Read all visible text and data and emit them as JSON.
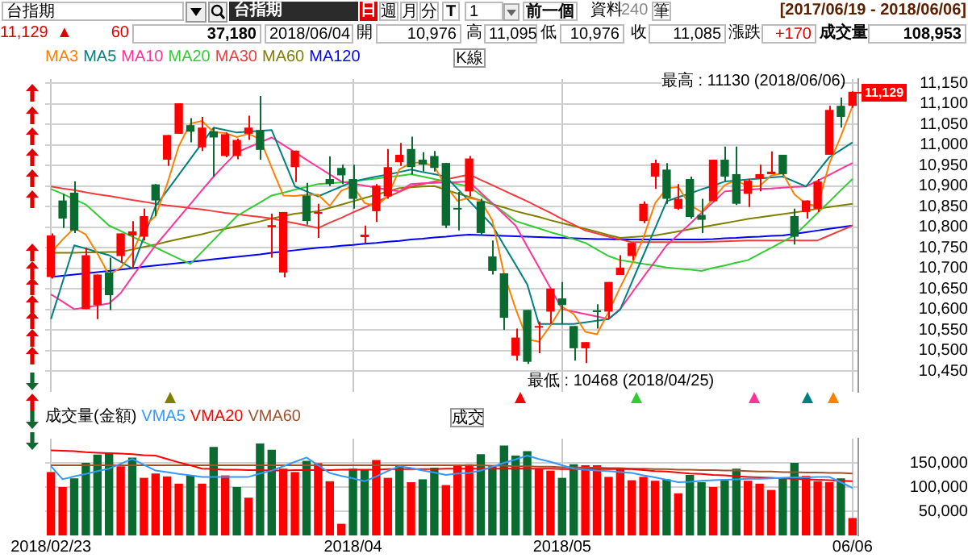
{
  "chart_data": [
    {
      "type": "candlestick",
      "legend": "top left",
      "grid": true,
      "tick_labels": "y",
      "marker": "none",
      "line_style": "solid",
      "categories": [
        null,
        null,
        null,
        null,
        null,
        null,
        null,
        null,
        null,
        null,
        null,
        null,
        null,
        null,
        null,
        null,
        null,
        null,
        null,
        null,
        null,
        null,
        null,
        null,
        null,
        null,
        null,
        null,
        null,
        null,
        null,
        null,
        null,
        null,
        null,
        null,
        null,
        null,
        null,
        null,
        null,
        null,
        null,
        null,
        null,
        null,
        null,
        null,
        null,
        null,
        null,
        null,
        null,
        null,
        null,
        null,
        null,
        null,
        null,
        null,
        null,
        null,
        null,
        null,
        null,
        null,
        null,
        null,
        null,
        null
      ],
      "ohlc": [
        [
          10679,
          10785,
          10675,
          10780
        ],
        [
          10865,
          10881,
          10798,
          10821
        ],
        [
          10884,
          10911,
          10786,
          10792
        ],
        [
          10601,
          10750,
          10601,
          10732
        ],
        [
          10611,
          10685,
          10577,
          10685
        ],
        [
          10690,
          10726,
          10599,
          10635
        ],
        [
          10730,
          10785,
          10714,
          10785
        ],
        [
          10780,
          10815,
          10700,
          10790
        ],
        [
          10777,
          10845,
          10768,
          10827
        ],
        [
          10904,
          10905,
          10827,
          10865
        ],
        [
          10964,
          11024,
          10949,
          11024
        ],
        [
          11027,
          11101,
          11027,
          11101
        ],
        [
          11048,
          11065,
          11006,
          11032
        ],
        [
          10994,
          11068,
          10985,
          11042
        ],
        [
          11033,
          11042,
          10923,
          11018
        ],
        [
          10973,
          11030,
          10970,
          11026
        ],
        [
          10973,
          11015,
          10965,
          11012
        ],
        [
          11027,
          11071,
          11012,
          11042
        ],
        [
          11036,
          11119,
          10964,
          10988
        ],
        [
          10800,
          10833,
          10726,
          10805
        ],
        [
          10690,
          10837,
          10678,
          10837
        ],
        [
          10946,
          10986,
          10910,
          10986
        ],
        [
          10877,
          10908,
          10806,
          10815
        ],
        [
          10833,
          10857,
          10774,
          10837
        ],
        [
          10917,
          10972,
          10900,
          10905
        ],
        [
          10944,
          10952,
          10905,
          10926
        ],
        [
          10917,
          10952,
          10845,
          10869
        ],
        [
          10776,
          10804,
          10762,
          10782
        ],
        [
          10839,
          10905,
          10813,
          10901
        ],
        [
          10875,
          10990,
          10869,
          10946
        ],
        [
          10958,
          11005,
          10949,
          10976
        ],
        [
          10990,
          11020,
          10928,
          10946
        ],
        [
          10964,
          10982,
          10935,
          10952
        ],
        [
          10973,
          10985,
          10935,
          10944
        ],
        [
          10956,
          10956,
          10798,
          10804
        ],
        [
          10845,
          10886,
          10792,
          10843
        ],
        [
          10887,
          10973,
          10875,
          10967
        ],
        [
          10863,
          10869,
          10780,
          10786
        ],
        [
          10729,
          10768,
          10685,
          10694
        ],
        [
          10688,
          10688,
          10551,
          10580
        ],
        [
          10488,
          10554,
          10476,
          10532
        ],
        [
          10599,
          10599,
          10468,
          10473
        ],
        [
          10556,
          10571,
          10494,
          10560
        ],
        [
          10595,
          10651,
          10565,
          10651
        ],
        [
          10627,
          10667,
          10565,
          10611
        ],
        [
          10560,
          10560,
          10476,
          10506
        ],
        [
          10506,
          10521,
          10470,
          10521
        ],
        [
          10596,
          10613,
          10554,
          10594
        ],
        [
          10595,
          10667,
          10577,
          10667
        ],
        [
          10684,
          10732,
          10684,
          10702
        ],
        [
          10730,
          10762,
          10720,
          10762
        ],
        [
          10815,
          10863,
          10810,
          10857
        ],
        [
          10923,
          10964,
          10893,
          10956
        ],
        [
          10940,
          10956,
          10857,
          10869
        ],
        [
          10845,
          10905,
          10842,
          10869
        ],
        [
          10917,
          10923,
          10821,
          10825
        ],
        [
          10830,
          10869,
          10786,
          10818
        ],
        [
          10863,
          10964,
          10863,
          10964
        ],
        [
          10964,
          10996,
          10911,
          10923
        ],
        [
          10929,
          10996,
          10854,
          10857
        ],
        [
          10881,
          10917,
          10849,
          10913
        ],
        [
          10919,
          10952,
          10887,
          10929
        ],
        [
          10929,
          10984,
          10929,
          10935
        ],
        [
          10976,
          10976,
          10926,
          10929
        ],
        [
          10827,
          10845,
          10758,
          10777
        ],
        [
          10837,
          10865,
          10821,
          10865
        ],
        [
          10845,
          10917,
          10837,
          10911
        ],
        [
          10976,
          11095,
          10976,
          11085
        ],
        [
          11095,
          11115,
          11042,
          11068
        ],
        [
          11095,
          11130,
          11090,
          11129
        ]
      ],
      "colors": [
        "#ff0000",
        "#0a6b30",
        "#0a6b30",
        "#ff0000",
        "#ff0000",
        "#0a6b30",
        "#ff0000",
        "#ff0000",
        "#ff0000",
        "#0a6b30",
        "#ff0000",
        "#ff0000",
        "#0a6b30",
        "#ff0000",
        "#0a6b30",
        "#ff0000",
        "#ff0000",
        "#ff0000",
        "#0a6b30",
        "#ff0000",
        "#ff0000",
        "#ff0000",
        "#0a6b30",
        "#ff0000",
        "#0a6b30",
        "#0a6b30",
        "#0a6b30",
        "#ff0000",
        "#ff0000",
        "#ff0000",
        "#ff0000",
        "#0a6b30",
        "#0a6b30",
        "#0a6b30",
        "#0a6b30",
        "#0a6b30",
        "#ff0000",
        "#0a6b30",
        "#0a6b30",
        "#0a6b30",
        "#ff0000",
        "#0a6b30",
        "#ff0000",
        "#ff0000",
        "#0a6b30",
        "#0a6b30",
        "#ff0000",
        "#0a6b30",
        "#ff0000",
        "#ff0000",
        "#ff0000",
        "#ff0000",
        "#ff0000",
        "#0a6b30",
        "#ff0000",
        "#0a6b30",
        "#0a6b30",
        "#ff0000",
        "#0a6b30",
        "#0a6b30",
        "#ff0000",
        "#ff0000",
        "#ff0000",
        "#0a6b30",
        "#0a6b30",
        "#ff0000",
        "#ff0000",
        "#ff0000",
        "#0a6b30",
        "#ff0000"
      ],
      "series": [
        {
          "name": "MA3",
          "type": "line",
          "color": "#ff8000",
          "values": [
            10738,
            10770,
            10798,
            10782,
            10736,
            10684,
            10702,
            10737,
            10801,
            10827,
            10905,
            10997,
            11052,
            11058,
            11031,
            11029,
            11019,
            11027,
            11014,
            10945,
            10877,
            10876,
            10879,
            10879,
            10852,
            10889,
            10900,
            10859,
            10851,
            10876,
            10941,
            10956,
            10958,
            10947,
            10900,
            10864,
            10871,
            10865,
            10816,
            10687,
            10602,
            10528,
            10522,
            10561,
            10607,
            10589,
            10546,
            10540,
            10594,
            10654,
            10710,
            10774,
            10858,
            10894,
            10898,
            10854,
            10837,
            10869,
            10902,
            10915,
            10898,
            10900,
            10926,
            10931,
            10880,
            10857,
            10851,
            10954,
            11021,
            11094
          ]
        },
        {
          "name": "MA5",
          "type": "line",
          "color": "#008080",
          "values": [
            10577,
            10667,
            10756,
            10748,
            10740,
            10732,
            10716,
            10700,
            10776,
            10851,
            10889,
            10927,
            10966,
            11004,
            11042,
            11036,
            11030,
            11032,
            11034,
            11036,
            10968,
            10899,
            10887,
            10875,
            10887,
            10899,
            10911,
            10917,
            10923,
            10928,
            10934,
            10940,
            10934,
            10929,
            10923,
            10893,
            10864,
            10834,
            10804,
            10756,
            10709,
            10661,
            10565,
            10565,
            10565,
            10565,
            10569,
            10573,
            10577,
            10600,
            10666,
            10732,
            10797,
            10863,
            10873,
            10882,
            10892,
            10901,
            10911,
            10913,
            10916,
            10918,
            10921,
            10923,
            10911,
            10899,
            10935,
            10970,
            10988,
            11006
          ]
        },
        {
          "name": "MA10",
          "type": "line",
          "color": "#ff3399",
          "values": [
            10637,
            10619,
            10601,
            10605,
            10610,
            10615,
            10640,
            10680,
            10718,
            10756,
            10789,
            10823,
            10856,
            10890,
            10923,
            10953,
            10982,
            10994,
            11006,
            11018,
            11000,
            10982,
            10964,
            10946,
            10928,
            10911,
            10906,
            10901,
            10896,
            10891,
            10887,
            10905,
            10907,
            10908,
            10909,
            10910,
            10911,
            10884,
            10858,
            10831,
            10804,
            10753,
            10703,
            10652,
            10601,
            10595,
            10589,
            10583,
            10577,
            10601,
            10640,
            10679,
            10717,
            10756,
            10782,
            10808,
            10835,
            10861,
            10887,
            10889,
            10891,
            10893,
            10894,
            10896,
            10898,
            10899,
            10913,
            10927,
            10942,
            10956
          ]
        },
        {
          "name": "MA20",
          "type": "line",
          "color": "#33cc33",
          "values": [
            10893,
            10881,
            10868,
            10855,
            10830,
            10804,
            10791,
            10777,
            10764,
            10751,
            10737,
            10724,
            10711,
            10740,
            10769,
            10798,
            10827,
            10844,
            10860,
            10877,
            10884,
            10891,
            10898,
            10905,
            10907,
            10909,
            10911,
            10915,
            10918,
            10922,
            10925,
            10929,
            10923,
            10917,
            10911,
            10905,
            10899,
            10878,
            10857,
            10836,
            10815,
            10806,
            10797,
            10788,
            10780,
            10771,
            10762,
            10746,
            10730,
            10720,
            10716,
            10711,
            10707,
            10702,
            10699,
            10697,
            10694,
            10701,
            10707,
            10714,
            10720,
            10735,
            10750,
            10765,
            10780,
            10807,
            10835,
            10862,
            10890,
            10917
          ]
        },
        {
          "name": "MA30",
          "type": "line",
          "color": "#f03c3c",
          "values": [
            10899,
            10894,
            10890,
            10885,
            10880,
            10876,
            10871,
            10866,
            10862,
            10857,
            10853,
            10850,
            10846,
            10843,
            10839,
            10835,
            10832,
            10828,
            10825,
            10821,
            10815,
            10810,
            10804,
            10798,
            10811,
            10823,
            10836,
            10848,
            10861,
            10874,
            10886,
            10899,
            10905,
            10911,
            10916,
            10922,
            10928,
            10915,
            10902,
            10889,
            10876,
            10863,
            10849,
            10835,
            10820,
            10806,
            10792,
            10785,
            10777,
            10770,
            10764,
            10764,
            10764,
            10764,
            10764,
            10764,
            10764,
            10765,
            10766,
            10767,
            10768,
            10768,
            10768,
            10768,
            10768,
            10768,
            10768,
            10780,
            10792,
            10804
          ]
        },
        {
          "name": "MA60",
          "type": "line",
          "color": "#808000",
          "values": [
            10738,
            10738,
            10738,
            10739,
            10739,
            10740,
            10740,
            10746,
            10752,
            10758,
            10765,
            10771,
            10777,
            10783,
            10790,
            10796,
            10802,
            10808,
            10814,
            10821,
            10827,
            10833,
            10836,
            10839,
            10847,
            10855,
            10863,
            10871,
            10879,
            10887,
            10895,
            10897,
            10899,
            10900,
            10891,
            10882,
            10874,
            10865,
            10856,
            10848,
            10839,
            10832,
            10825,
            10817,
            10810,
            10803,
            10796,
            10789,
            10781,
            10774,
            10776,
            10778,
            10780,
            10785,
            10790,
            10795,
            10800,
            10805,
            10810,
            10815,
            10820,
            10824,
            10828,
            10832,
            10836,
            10840,
            10845,
            10849,
            10853,
            10857
          ]
        },
        {
          "name": "MA120",
          "type": "line",
          "color": "#0000ff",
          "values": [
            10679,
            10682,
            10685,
            10688,
            10691,
            10694,
            10697,
            10700,
            10704,
            10707,
            10710,
            10713,
            10716,
            10719,
            10722,
            10725,
            10728,
            10731,
            10734,
            10738,
            10741,
            10744,
            10747,
            10750,
            10752,
            10755,
            10757,
            10760,
            10762,
            10765,
            10767,
            10770,
            10772,
            10775,
            10777,
            10780,
            10782,
            10781,
            10780,
            10779,
            10778,
            10777,
            10776,
            10775,
            10774,
            10773,
            10772,
            10771,
            10771,
            10770,
            10770,
            10770,
            10770,
            10770,
            10770,
            10770,
            10770,
            10771,
            10773,
            10774,
            10776,
            10777,
            10779,
            10780,
            10784,
            10788,
            10792,
            10796,
            10800,
            10804
          ]
        }
      ],
      "ylim": [
        10400,
        11160
      ],
      "yticks": [
        {
          "value": 10450,
          "label": "10,450"
        },
        {
          "value": 10500,
          "label": "10,500"
        },
        {
          "value": 10550,
          "label": "10,550"
        },
        {
          "value": 10600,
          "label": "10,600"
        },
        {
          "value": 10650,
          "label": "10,650"
        },
        {
          "value": 10700,
          "label": "10,700"
        },
        {
          "value": 10750,
          "label": "10,750"
        },
        {
          "value": 10800,
          "label": "10,800"
        },
        {
          "value": 10850,
          "label": "10,850"
        },
        {
          "value": 10900,
          "label": "10,900"
        },
        {
          "value": 10950,
          "label": "10,950"
        },
        {
          "value": 11000,
          "label": "11,000"
        },
        {
          "value": 11050,
          "label": "11,050"
        },
        {
          "value": 11100,
          "label": "11,100"
        },
        {
          "value": 11150,
          "label": "11,150"
        }
      ],
      "ref_lines": [
        {
          "axis": "y",
          "value": 11129,
          "label": "11,129",
          "color": "#ff0000"
        }
      ],
      "annotations": [
        "台指期",
        "台指期",
        "日",
        "週",
        "月",
        "分",
        "T",
        "1",
        "前一個",
        "資料",
        "240",
        "筆",
        "[2017/06/19 - 2018/06/06]",
        "11,129",
        "▲",
        "60",
        "37,180",
        "2018/06/04",
        "開",
        "10,976",
        "高",
        "11,095",
        "低",
        "10,976",
        "收",
        "11,085",
        "漲跌",
        "+170",
        "成交量",
        "108,953",
        "K線",
        "最高 : 11130 (2018/06/06)",
        "最低 : 10468 (2018/04/25)"
      ]
    },
    {
      "type": "bar",
      "legend": "top left",
      "legend_title": "成交量(金額)",
      "grid": true,
      "marker": "none",
      "line_style": "solid",
      "categories": [
        "2018/02/23",
        null,
        null,
        null,
        null,
        null,
        null,
        null,
        null,
        null,
        null,
        null,
        null,
        null,
        null,
        null,
        null,
        null,
        null,
        null,
        null,
        null,
        null,
        null,
        null,
        null,
        "2018/04",
        null,
        null,
        null,
        null,
        null,
        null,
        null,
        null,
        null,
        null,
        null,
        null,
        null,
        null,
        null,
        null,
        null,
        "2018/05",
        null,
        null,
        null,
        null,
        null,
        null,
        null,
        null,
        null,
        null,
        null,
        null,
        null,
        null,
        null,
        null,
        null,
        null,
        null,
        null,
        null,
        null,
        null,
        null,
        "06/06"
      ],
      "series": [
        {
          "type": "bar",
          "values": [
            131000,
            100000,
            118000,
            150000,
            167000,
            171000,
            143000,
            161000,
            119000,
            128000,
            122000,
            107000,
            125000,
            107000,
            183000,
            124000,
            100000,
            78000,
            190000,
            177000,
            138000,
            131000,
            154000,
            149000,
            112000,
            24000,
            138000,
            136000,
            156000,
            119000,
            145000,
            110000,
            116000,
            140000,
            104000,
            146000,
            147000,
            168000,
            143000,
            186000,
            165000,
            174000,
            138000,
            134000,
            119000,
            147000,
            145000,
            145000,
            121000,
            138000,
            114000,
            121000,
            113000,
            116000,
            87000,
            125000,
            110000,
            100000,
            114000,
            138000,
            113000,
            107000,
            94000,
            119000,
            150000,
            123000,
            112000,
            110000,
            118000,
            36000
          ],
          "colors": [
            "#ff0000",
            "#ff0000",
            "#0a6b30",
            "#0a6b30",
            "#0a6b30",
            "#0a6b30",
            "#ff0000",
            "#0a6b30",
            "#ff0000",
            "#ff0000",
            "#ff0000",
            "#ff0000",
            "#0a6b30",
            "#ff0000",
            "#0a6b30",
            "#ff0000",
            "#0a6b30",
            "#ff0000",
            "#0a6b30",
            "#0a6b30",
            "#ff0000",
            "#ff0000",
            "#0a6b30",
            "#ff0000",
            "#ff0000",
            "#ff0000",
            "#0a6b30",
            "#0a6b30",
            "#ff0000",
            "#ff0000",
            "#0a6b30",
            "#ff0000",
            "#0a6b30",
            "#0a6b30",
            "#ff0000",
            "#ff0000",
            "#ff0000",
            "#0a6b30",
            "#0a6b30",
            "#0a6b30",
            "#0a6b30",
            "#0a6b30",
            "#ff0000",
            "#ff0000",
            "#0a6b30",
            "#0a6b30",
            "#ff0000",
            "#ff0000",
            "#ff0000",
            "#ff0000",
            "#ff0000",
            "#ff0000",
            "#ff0000",
            "#0a6b30",
            "#ff0000",
            "#0a6b30",
            "#0a6b30",
            "#ff0000",
            "#0a6b30",
            "#0a6b30",
            "#ff0000",
            "#ff0000",
            "#ff0000",
            "#0a6b30",
            "#0a6b30",
            "#ff0000",
            "#ff0000",
            "#ff0000",
            "#0a6b30",
            "#ff0000"
          ]
        },
        {
          "name": "VMA5",
          "type": "line",
          "color": "#3399ff",
          "values": [
            143000,
            116000,
            122000,
            127000,
            133000,
            138000,
            148000,
            158000,
            146000,
            134000,
            131000,
            127000,
            124000,
            121000,
            121000,
            121000,
            121000,
            121000,
            128000,
            134000,
            143000,
            152000,
            161000,
            145000,
            129000,
            123000,
            118000,
            112000,
            122000,
            133000,
            143000,
            139000,
            134000,
            130000,
            125000,
            128000,
            129000,
            134000,
            142000,
            150000,
            157000,
            165000,
            158000,
            152000,
            145000,
            138000,
            136000,
            134000,
            133000,
            131000,
            129000,
            124000,
            120000,
            115000,
            110000,
            111000,
            113000,
            114000,
            115000,
            116000,
            117000,
            117000,
            118000,
            119000,
            120000,
            120000,
            121000,
            121000,
            110000,
            98000
          ]
        },
        {
          "name": "VMA20",
          "type": "line",
          "color": "#ff0000",
          "values": [
            176000,
            175000,
            174000,
            172000,
            171000,
            170000,
            169000,
            168000,
            166000,
            165000,
            158000,
            151000,
            145000,
            138000,
            137000,
            136000,
            136000,
            135000,
            135000,
            134000,
            134000,
            135000,
            135000,
            135000,
            135000,
            136000,
            136000,
            136000,
            136000,
            137000,
            137000,
            137000,
            137000,
            137000,
            138000,
            138000,
            138000,
            138000,
            138000,
            138000,
            138000,
            138000,
            138000,
            138000,
            137000,
            137000,
            137000,
            137000,
            137000,
            137000,
            137000,
            135000,
            133000,
            132000,
            130000,
            128000,
            127000,
            125000,
            124000,
            122000,
            121000,
            120000,
            119000,
            118000,
            117000,
            116000,
            115000,
            114000,
            113000,
            112000
          ]
        },
        {
          "name": "VMA60",
          "type": "line",
          "color": "#a0522d",
          "values": [
            145000,
            145000,
            145000,
            145000,
            145000,
            145000,
            145000,
            145000,
            145000,
            145000,
            145000,
            145000,
            145000,
            145000,
            145000,
            145000,
            145000,
            145000,
            145000,
            145000,
            145000,
            145000,
            145000,
            145000,
            145000,
            145000,
            145000,
            145000,
            145000,
            145000,
            145000,
            145000,
            145000,
            145000,
            145000,
            145000,
            145000,
            145000,
            144000,
            144000,
            143000,
            143000,
            142000,
            142000,
            141000,
            141000,
            140000,
            140000,
            139000,
            139000,
            138000,
            138000,
            137000,
            137000,
            136000,
            136000,
            135000,
            135000,
            134000,
            134000,
            133000,
            132000,
            132000,
            131000,
            131000,
            130000,
            130000,
            129000,
            129000,
            128000
          ]
        }
      ],
      "ylim": [
        0,
        200000
      ],
      "yticks": [
        {
          "value": 50000,
          "label": "50,000"
        },
        {
          "value": 100000,
          "label": "100,000"
        },
        {
          "value": 150000,
          "label": "150,000"
        }
      ],
      "annotations": [
        "成交"
      ]
    }
  ]
}
